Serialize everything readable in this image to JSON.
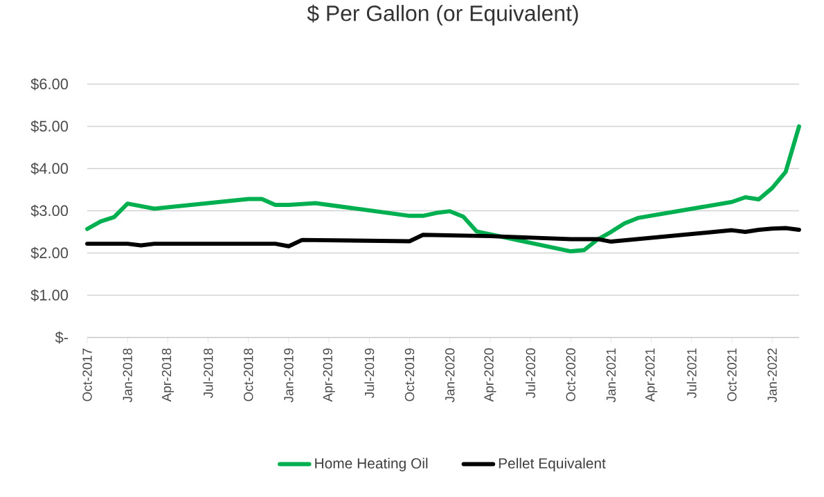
{
  "chart_data": {
    "type": "line",
    "title": "$ Per Gallon (or Equivalent)",
    "xlim": [
      "2017-10",
      "2022-03"
    ],
    "xticks": [
      {
        "value": "2017-10",
        "label": "Oct-2017"
      },
      {
        "value": "2018-01",
        "label": "Jan-2018"
      },
      {
        "value": "2018-04",
        "label": "Apr-2018"
      },
      {
        "value": "2018-07",
        "label": "Jul-2018"
      },
      {
        "value": "2018-10",
        "label": "Oct-2018"
      },
      {
        "value": "2019-01",
        "label": "Jan-2019"
      },
      {
        "value": "2019-04",
        "label": "Apr-2019"
      },
      {
        "value": "2019-07",
        "label": "Jul-2019"
      },
      {
        "value": "2019-10",
        "label": "Oct-2019"
      },
      {
        "value": "2020-01",
        "label": "Jan-2020"
      },
      {
        "value": "2020-04",
        "label": "Apr-2020"
      },
      {
        "value": "2020-07",
        "label": "Jul-2020"
      },
      {
        "value": "2020-10",
        "label": "Oct-2020"
      },
      {
        "value": "2021-01",
        "label": "Jan-2021"
      },
      {
        "value": "2021-04",
        "label": "Apr-2021"
      },
      {
        "value": "2021-07",
        "label": "Jul-2021"
      },
      {
        "value": "2021-10",
        "label": "Oct-2021"
      },
      {
        "value": "2022-01",
        "label": "Jan-2022"
      }
    ],
    "ylim": [
      0,
      6
    ],
    "yticks": [
      {
        "value": 0,
        "label": "$-"
      },
      {
        "value": 1,
        "label": "$1.00"
      },
      {
        "value": 2,
        "label": "$2.00"
      },
      {
        "value": 3,
        "label": "$3.00"
      },
      {
        "value": 4,
        "label": "$4.00"
      },
      {
        "value": 5,
        "label": "$5.00"
      },
      {
        "value": 6,
        "label": "$6.00"
      }
    ],
    "grid": "y",
    "legend": "bottom",
    "marker": "none",
    "line_style": "solid",
    "series": [
      {
        "name": "Home Heating Oil",
        "color": "#00b050",
        "x": [
          "2017-10",
          "2017-11",
          "2017-12",
          "2018-01",
          "2018-03",
          "2018-10",
          "2018-11",
          "2018-12",
          "2019-01",
          "2019-03",
          "2019-10",
          "2019-11",
          "2019-12",
          "2020-01",
          "2020-02",
          "2020-03",
          "2020-10",
          "2020-11",
          "2020-12",
          "2021-01",
          "2021-02",
          "2021-03",
          "2021-10",
          "2021-11",
          "2021-12",
          "2022-01",
          "2022-02",
          "2022-03"
        ],
        "values": [
          2.57,
          2.75,
          2.85,
          3.17,
          3.05,
          3.28,
          3.28,
          3.14,
          3.14,
          3.18,
          2.88,
          2.88,
          2.95,
          2.99,
          2.86,
          2.51,
          2.04,
          2.07,
          2.32,
          2.5,
          2.7,
          2.83,
          3.21,
          3.32,
          3.27,
          3.54,
          3.92,
          5.0
        ]
      },
      {
        "name": "Pellet Equivalent",
        "color": "#000000",
        "x": [
          "2017-10",
          "2018-01",
          "2018-02",
          "2018-03",
          "2018-12",
          "2019-01",
          "2019-02",
          "2019-10",
          "2019-11",
          "2020-04",
          "2020-10",
          "2020-12",
          "2021-01",
          "2021-10",
          "2021-11",
          "2021-12",
          "2022-01",
          "2022-02",
          "2022-03"
        ],
        "values": [
          2.22,
          2.22,
          2.18,
          2.22,
          2.22,
          2.16,
          2.31,
          2.28,
          2.43,
          2.4,
          2.33,
          2.33,
          2.27,
          2.54,
          2.5,
          2.55,
          2.58,
          2.59,
          2.55
        ]
      }
    ]
  }
}
